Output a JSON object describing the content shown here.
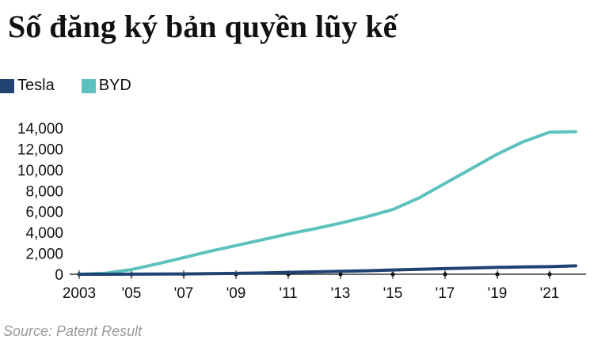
{
  "title": "Số đăng ký bản quyền lũy kế",
  "source": "Source: Patent Result",
  "colors": {
    "tesla": "#1f4373",
    "byd": "#5dc1bd"
  },
  "chart_data": {
    "type": "line",
    "title": "Số đăng ký bản quyền lũy kế",
    "xlabel": "",
    "ylabel": "",
    "xlim": [
      2003,
      2022
    ],
    "ylim": [
      0,
      14000
    ],
    "legend_position": "top-left",
    "grid": false,
    "y_ticks": [
      0,
      2000,
      4000,
      6000,
      8000,
      10000,
      12000,
      14000
    ],
    "y_tick_labels": [
      "0",
      "2,000",
      "4,000",
      "6,000",
      "8,000",
      "10,000",
      "12,000",
      "14,000"
    ],
    "x_ticks": [
      2003,
      2005,
      2007,
      2009,
      2011,
      2013,
      2015,
      2017,
      2019,
      2021
    ],
    "x_tick_labels": [
      "2003",
      "'05",
      "'07",
      "'09",
      "'11",
      "'13",
      "'15",
      "'17",
      "'19",
      "'21"
    ],
    "x": [
      2003,
      2004,
      2005,
      2006,
      2007,
      2008,
      2009,
      2010,
      2011,
      2012,
      2013,
      2014,
      2015,
      2016,
      2017,
      2018,
      2019,
      2020,
      2021,
      2022
    ],
    "series": [
      {
        "name": "Tesla",
        "values": [
          0,
          0,
          10,
          20,
          30,
          50,
          80,
          120,
          180,
          230,
          280,
          330,
          410,
          470,
          540,
          600,
          660,
          700,
          730,
          800
        ]
      },
      {
        "name": "BYD",
        "values": [
          0,
          100,
          450,
          1000,
          1600,
          2200,
          2750,
          3300,
          3850,
          4350,
          4900,
          5500,
          6200,
          7300,
          8700,
          10100,
          11500,
          12700,
          13600,
          13650
        ]
      }
    ]
  }
}
